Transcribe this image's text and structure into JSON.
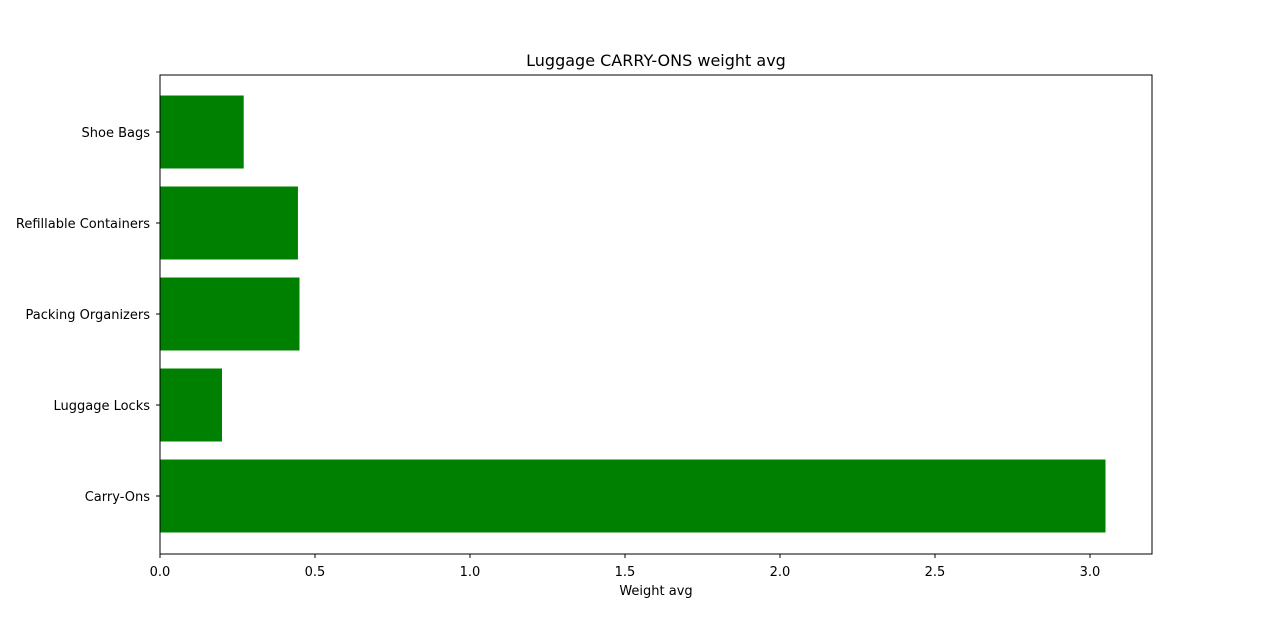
{
  "chart_data": {
    "type": "bar",
    "orientation": "horizontal",
    "title": "Luggage CARRY-ONS weight avg",
    "xlabel": "Weight avg",
    "ylabel": "",
    "categories": [
      "Carry-Ons",
      "Luggage Locks",
      "Packing Organizers",
      "Refillable Containers",
      "Shoe Bags"
    ],
    "values": [
      3.05,
      0.2,
      0.45,
      0.445,
      0.27
    ],
    "xlim": [
      0,
      3.2
    ],
    "xticks": [
      "0.0",
      "0.5",
      "1.0",
      "1.5",
      "2.0",
      "2.5",
      "3.0"
    ],
    "bar_color": "#008000",
    "grid": false,
    "legend": "none"
  }
}
